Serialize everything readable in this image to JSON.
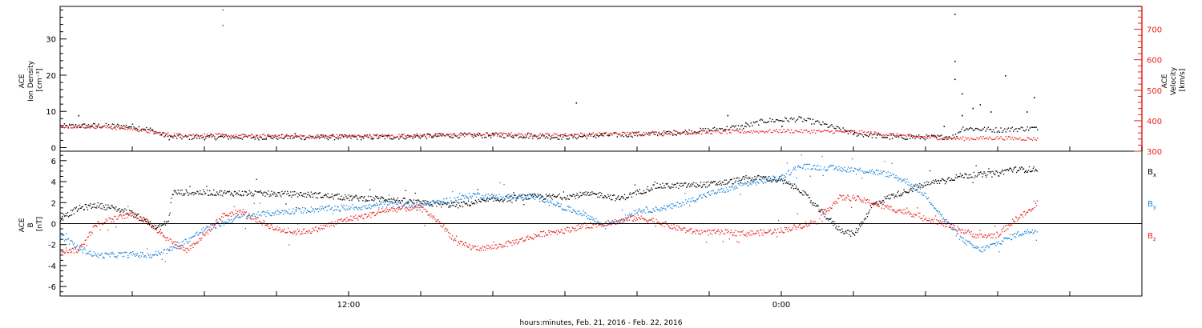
{
  "chart_data": [
    {
      "type": "scatter",
      "panel": "density-velocity",
      "xlabel": "hours:minutes, Feb. 21, 2016 - Feb. 22, 2016",
      "xlim_hours": [
        -10,
        20
      ],
      "x_ticks": [
        "",
        "",
        "",
        "",
        "12:00",
        "",
        "",
        "",
        "",
        "",
        "0:00",
        "",
        "",
        "",
        "",
        ""
      ],
      "left_axis": {
        "label_lines": [
          "ACE",
          "Ion Density",
          "[cm⁻³]"
        ],
        "ylim": [
          -1,
          39
        ],
        "ticks": [
          0,
          10,
          20,
          30
        ],
        "color": "#000000"
      },
      "right_axis": {
        "label_lines": [
          "ACE",
          "Velocity",
          "[km/s]"
        ],
        "ylim": [
          300,
          775
        ],
        "ticks": [
          300,
          400,
          500,
          600,
          700
        ],
        "color": "#e8201c"
      },
      "series": [
        {
          "color": "#000000",
          "axis": "left",
          "baseline": [
            [
              -10,
              6
            ],
            [
              -9,
              6.2
            ],
            [
              -8,
              6
            ],
            [
              -7.5,
              5
            ],
            [
              -7,
              3
            ],
            [
              -5,
              3
            ],
            [
              -3,
              3
            ],
            [
              -1,
              3
            ],
            [
              1,
              3.5
            ],
            [
              2.5,
              3.5
            ],
            [
              4,
              3
            ],
            [
              5,
              3.5
            ],
            [
              6,
              3.8
            ],
            [
              7,
              4.2
            ],
            [
              8,
              5
            ],
            [
              9,
              6
            ],
            [
              9.5,
              7.5
            ],
            [
              10.5,
              8
            ],
            [
              11,
              7
            ],
            [
              12,
              4
            ],
            [
              13,
              3
            ],
            [
              14,
              3
            ],
            [
              14.3,
              3
            ],
            [
              14.8,
              3.2
            ],
            [
              15,
              5.5
            ],
            [
              16,
              5
            ],
            [
              17,
              5.5
            ],
            [
              17.1,
              5
            ]
          ],
          "outliers": [
            [
              -9.5,
              9
            ],
            [
              -3.5,
              4
            ],
            [
              2,
              4
            ],
            [
              5,
              4
            ],
            [
              9,
              7
            ],
            [
              10,
              6
            ],
            [
              12,
              4
            ],
            [
              15,
              9
            ],
            [
              15.3,
              11
            ],
            [
              15.5,
              12
            ],
            [
              15.8,
              10
            ],
            [
              16.2,
              20
            ],
            [
              16.8,
              10
            ],
            [
              17.0,
              14
            ],
            [
              14.5,
              6
            ],
            [
              14.8,
              24
            ],
            [
              14.8,
              19
            ],
            [
              14.8,
              37
            ],
            [
              15.0,
              15
            ],
            [
              8.5,
              9
            ],
            [
              4.3,
              12.5
            ]
          ]
        },
        {
          "color": "#e8201c",
          "axis": "right",
          "baseline": [
            [
              -10,
              385
            ],
            [
              -9,
              382
            ],
            [
              -8,
              375
            ],
            [
              -7.5,
              365
            ],
            [
              -7,
              356
            ],
            [
              -5,
              352
            ],
            [
              -3,
              350
            ],
            [
              -1,
              352
            ],
            [
              1,
              355
            ],
            [
              2,
              357
            ],
            [
              4,
              355
            ],
            [
              6,
              360
            ],
            [
              8,
              364
            ],
            [
              10,
              368
            ],
            [
              12,
              365
            ],
            [
              13,
              356
            ],
            [
              14,
              347
            ],
            [
              15,
              343
            ],
            [
              16,
              345
            ],
            [
              17,
              342
            ],
            [
              17.1,
              342
            ]
          ],
          "outliers": [
            [
              -5.5,
              765
            ],
            [
              -5.5,
              715
            ],
            [
              -5.5,
              355
            ]
          ]
        }
      ]
    },
    {
      "type": "scatter",
      "panel": "imf-b",
      "xlim_hours": [
        -10,
        20
      ],
      "left_axis": {
        "label_lines": [
          "ACE",
          "B",
          "[nT]"
        ],
        "ylim": [
          -6.9,
          6.9
        ],
        "ticks": [
          -6,
          -4,
          -2,
          0,
          2,
          4,
          6
        ]
      },
      "zero_line": 0,
      "series": [
        {
          "name": "Bx",
          "legend_main": "B",
          "legend_sub": "x",
          "color": "#000000",
          "points": [
            [
              -10,
              0.5
            ],
            [
              -9.5,
              1.5
            ],
            [
              -9,
              1.8
            ],
            [
              -8.5,
              1.5
            ],
            [
              -8,
              1.0
            ],
            [
              -7.8,
              0.6
            ],
            [
              -7.5,
              0
            ],
            [
              -7.3,
              -0.4
            ],
            [
              -7,
              0.3
            ],
            [
              -6.9,
              3.0
            ],
            [
              -6,
              3.0
            ],
            [
              -4.5,
              2.9
            ],
            [
              -3,
              2.8
            ],
            [
              -2,
              2.5
            ],
            [
              -1,
              2.4
            ],
            [
              0,
              2.0
            ],
            [
              1,
              1.8
            ],
            [
              2,
              2.3
            ],
            [
              3,
              2.6
            ],
            [
              4,
              2.6
            ],
            [
              4.5,
              2.8
            ],
            [
              5,
              2.8
            ],
            [
              5.5,
              2.4
            ],
            [
              6,
              3.0
            ],
            [
              6.5,
              3.6
            ],
            [
              7.5,
              3.7
            ],
            [
              8,
              3.8
            ],
            [
              8.5,
              4.0
            ],
            [
              9,
              4.3
            ],
            [
              9.5,
              4.4
            ],
            [
              10,
              4.1
            ],
            [
              10.5,
              3.3
            ],
            [
              11,
              1.5
            ],
            [
              11.3,
              0.5
            ],
            [
              11.6,
              -0.5
            ],
            [
              12,
              -1.0
            ],
            [
              12.3,
              0.5
            ],
            [
              12.5,
              1.8
            ],
            [
              13,
              2.6
            ],
            [
              14,
              3.8
            ],
            [
              15,
              4.6
            ],
            [
              16,
              4.8
            ],
            [
              16.3,
              5.2
            ],
            [
              17,
              5.2
            ],
            [
              17.1,
              5.3
            ]
          ]
        },
        {
          "name": "By",
          "legend_main": "B",
          "legend_sub": "y",
          "color": "#1b82d6",
          "points": [
            [
              -10,
              -1.0
            ],
            [
              -9.8,
              -1.6
            ],
            [
              -9.5,
              -2.3
            ],
            [
              -9,
              -3.0
            ],
            [
              -8,
              -2.9
            ],
            [
              -7.5,
              -3.0
            ],
            [
              -7,
              -2.5
            ],
            [
              -6.5,
              -1.6
            ],
            [
              -6,
              -0.5
            ],
            [
              -5,
              0.7
            ],
            [
              -4,
              1.1
            ],
            [
              -3,
              1.4
            ],
            [
              -2,
              1.6
            ],
            [
              -1.5,
              1.6
            ],
            [
              -1,
              1.9
            ],
            [
              0,
              1.8
            ],
            [
              0.5,
              2.1
            ],
            [
              1,
              2.4
            ],
            [
              1.5,
              2.8
            ],
            [
              2,
              2.6
            ],
            [
              3,
              2.6
            ],
            [
              3.5,
              2.3
            ],
            [
              4,
              1.5
            ],
            [
              4.5,
              1.0
            ],
            [
              5,
              0
            ],
            [
              5.5,
              0.3
            ],
            [
              6,
              1.3
            ],
            [
              6.5,
              1.4
            ],
            [
              7,
              1.7
            ],
            [
              7.5,
              2.3
            ],
            [
              8,
              2.9
            ],
            [
              8.5,
              3.3
            ],
            [
              9,
              3.8
            ],
            [
              9.5,
              4.1
            ],
            [
              10,
              4.5
            ],
            [
              10.5,
              5.5
            ],
            [
              11,
              5.4
            ],
            [
              11.5,
              5.3
            ],
            [
              12,
              5.2
            ],
            [
              12.5,
              5.0
            ],
            [
              13,
              4.7
            ],
            [
              13.5,
              4.0
            ],
            [
              14,
              2.7
            ],
            [
              14.5,
              0.5
            ],
            [
              15,
              -1.5
            ],
            [
              15.5,
              -2.5
            ],
            [
              16,
              -1.8
            ],
            [
              16.5,
              -1.0
            ],
            [
              17,
              -0.6
            ],
            [
              17.1,
              -0.5
            ]
          ]
        },
        {
          "name": "Bz",
          "legend_main": "B",
          "legend_sub": "z",
          "color": "#e8201c",
          "points": [
            [
              -10,
              -2.5
            ],
            [
              -9.5,
              -2.5
            ],
            [
              -9,
              0
            ],
            [
              -8.5,
              0.5
            ],
            [
              -8,
              1.0
            ],
            [
              -7.5,
              0
            ],
            [
              -7,
              -1.5
            ],
            [
              -6.5,
              -2.5
            ],
            [
              -6,
              -1.0
            ],
            [
              -5.5,
              0.8
            ],
            [
              -5,
              1.2
            ],
            [
              -4.5,
              0.3
            ],
            [
              -4,
              -0.5
            ],
            [
              -3.5,
              -0.8
            ],
            [
              -3,
              -0.6
            ],
            [
              -2.5,
              0
            ],
            [
              -2,
              0.5
            ],
            [
              -1.5,
              0.8
            ],
            [
              -1,
              1.3
            ],
            [
              -0.5,
              1.5
            ],
            [
              0,
              1.5
            ],
            [
              0.5,
              0.2
            ],
            [
              1,
              -1.8
            ],
            [
              1.5,
              -2.3
            ],
            [
              2,
              -2.2
            ],
            [
              2.5,
              -1.8
            ],
            [
              3,
              -1.3
            ],
            [
              3.5,
              -0.8
            ],
            [
              4,
              -0.6
            ],
            [
              4.5,
              -0.2
            ],
            [
              5,
              0
            ],
            [
              5.5,
              0.3
            ],
            [
              6,
              0.6
            ],
            [
              6.5,
              0.3
            ],
            [
              7,
              -0.3
            ],
            [
              7.5,
              -0.7
            ],
            [
              8,
              -0.8
            ],
            [
              8.5,
              -0.8
            ],
            [
              9,
              -0.9
            ],
            [
              9.5,
              -0.8
            ],
            [
              10,
              -0.6
            ],
            [
              10.5,
              -0.2
            ],
            [
              11,
              0.3
            ],
            [
              11.3,
              1.5
            ],
            [
              11.6,
              2.5
            ],
            [
              12,
              2.5
            ],
            [
              12.5,
              2.0
            ],
            [
              13,
              1.5
            ],
            [
              13.5,
              1.1
            ],
            [
              14,
              0.6
            ],
            [
              14.5,
              0
            ],
            [
              15,
              -0.6
            ],
            [
              15.5,
              -1.2
            ],
            [
              16,
              -1.0
            ],
            [
              16.5,
              0.5
            ],
            [
              17,
              1.5
            ],
            [
              17.1,
              2.3
            ]
          ]
        }
      ]
    }
  ]
}
